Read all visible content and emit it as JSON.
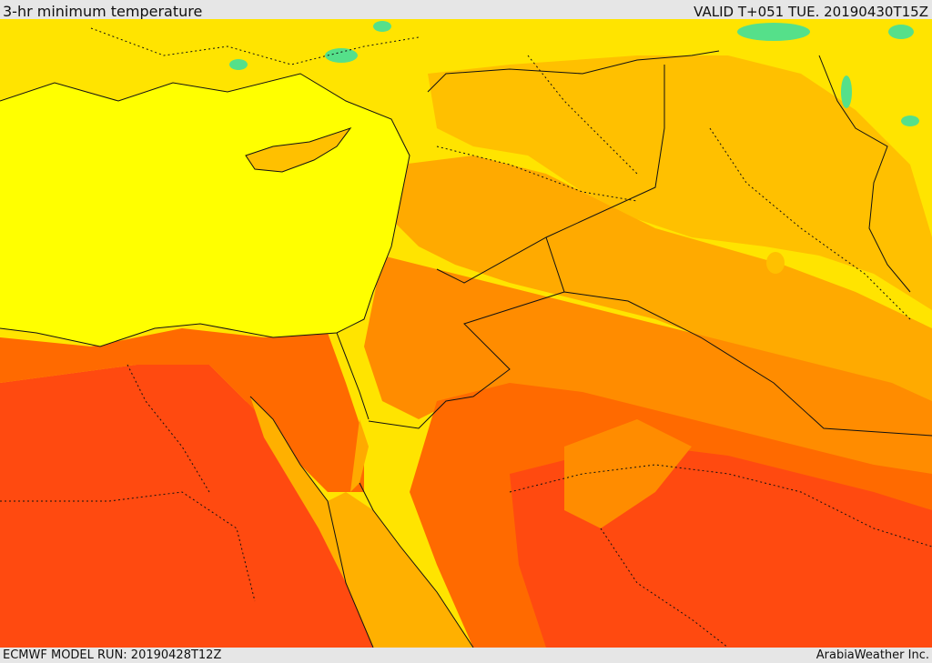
{
  "header": {
    "title": "3-hr minimum temperature",
    "valid_time": "VALID T+051 TUE. 20190430T15Z"
  },
  "footer": {
    "model_run": "ECMWF MODEL RUN: 20190428T12Z",
    "credit": "ArabiaWeather Inc."
  },
  "palette": {
    "cool_green": "#55e08a",
    "light_yellow": "#ffff00",
    "yellow": "#ffe400",
    "gold": "#ffc000",
    "amber": "#ffaa00",
    "orange": "#ff8c00",
    "dark_orange": "#ff6a00",
    "red_orange": "#ff4a10",
    "sea": "#ffff00",
    "red_sea": "#ffb000",
    "boundary_color": "#111111"
  }
}
